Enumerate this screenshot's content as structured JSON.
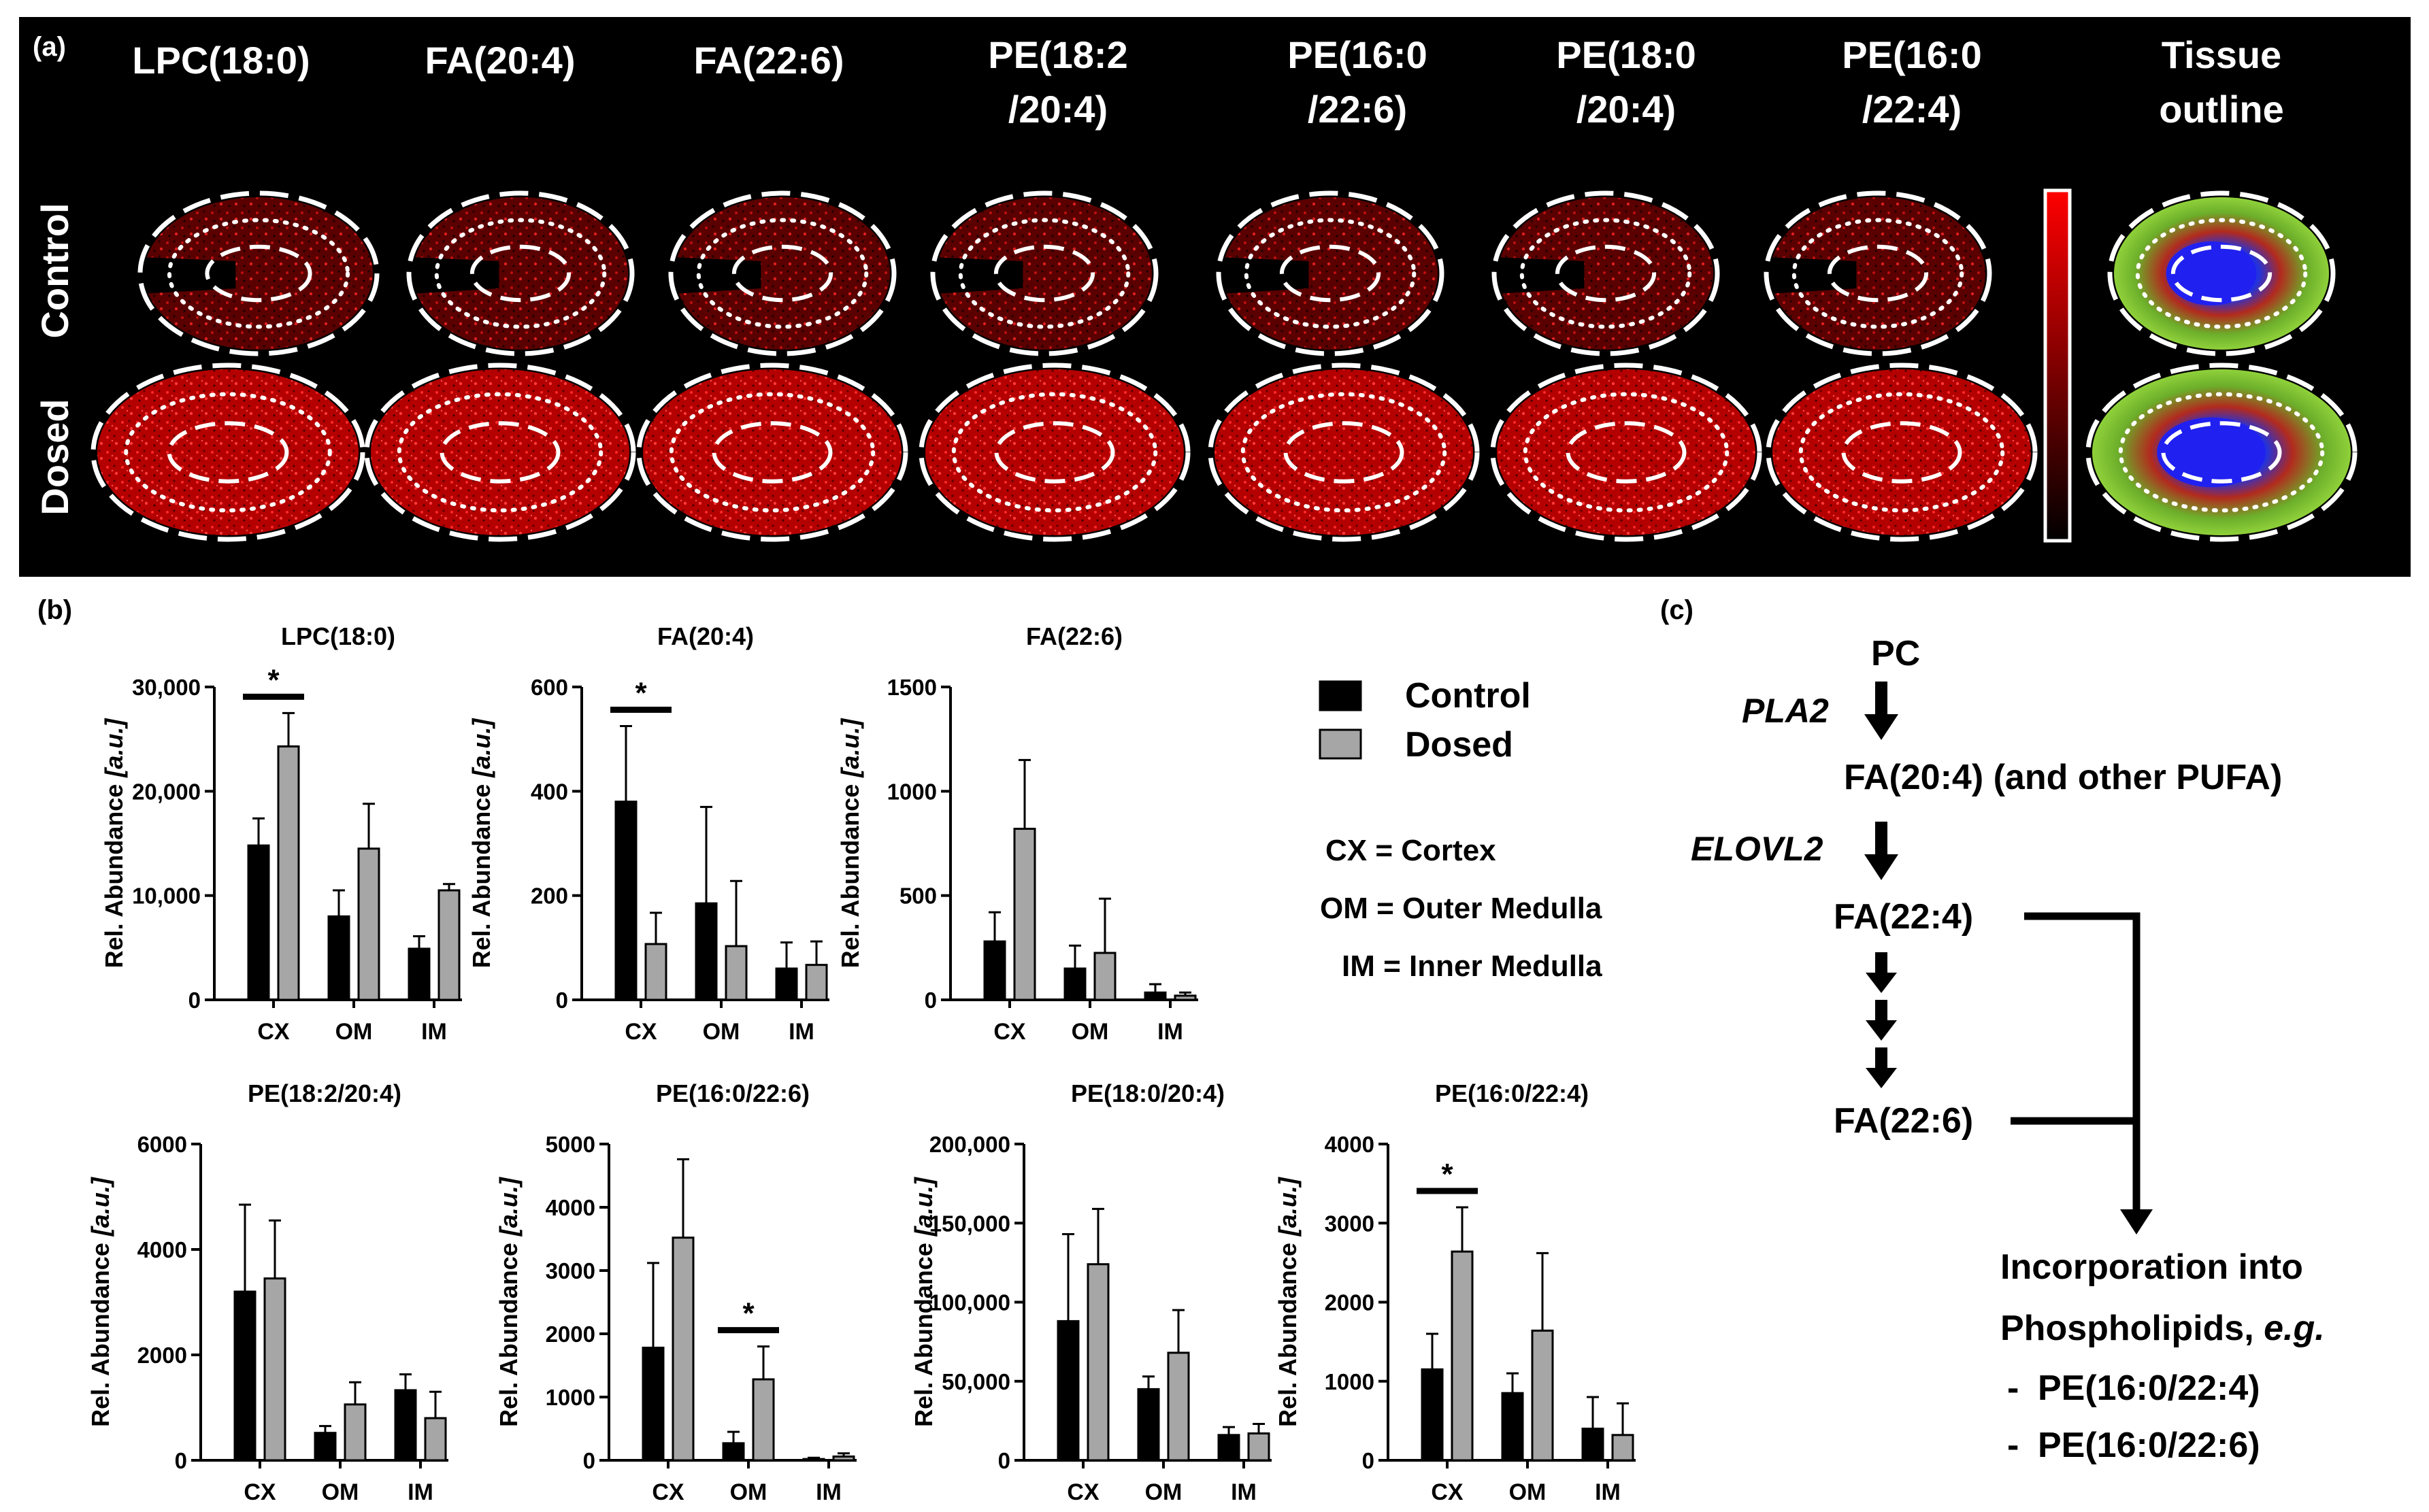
{
  "panel_a": {
    "label": "(a)",
    "columns": [
      {
        "line1": "LPC(18:0)",
        "line2": ""
      },
      {
        "line1": "FA(20:4)",
        "line2": ""
      },
      {
        "line1": "FA(22:6)",
        "line2": ""
      },
      {
        "line1": "PE(18:2",
        "line2": "/20:4)"
      },
      {
        "line1": "PE(16:0",
        "line2": "/22:6)"
      },
      {
        "line1": "PE(18:0",
        "line2": "/20:4)"
      },
      {
        "line1": "PE(16:0",
        "line2": "/22:4)"
      },
      {
        "line1": "Tissue",
        "line2": "outline"
      }
    ],
    "rows": [
      "Control",
      "Dosed"
    ]
  },
  "panel_b": {
    "label": "(b)",
    "legend": [
      {
        "name": "Control",
        "color": "#000000"
      },
      {
        "name": "Dosed",
        "color": "#a6a6a6"
      }
    ],
    "abbreviations": [
      "CX = Cortex",
      "OM = Outer Medulla",
      "IM = Inner Medulla"
    ],
    "ylabel_prefix": "Rel. Abundance ",
    "ylabel_unit": "[a.u.]"
  },
  "chart_data": [
    {
      "type": "bar",
      "title": "LPC(18:0)",
      "categories": [
        "CX",
        "OM",
        "IM"
      ],
      "ylim": [
        0,
        30000
      ],
      "yticks": [
        "0",
        "10,000",
        "20,000",
        "30,000"
      ],
      "ytick_values": [
        0,
        10000,
        20000,
        30000
      ],
      "series": [
        {
          "name": "Control",
          "values": [
            14800,
            8000,
            4900
          ],
          "errors": [
            2600,
            2500,
            1200
          ]
        },
        {
          "name": "Dosed",
          "values": [
            24300,
            14500,
            10500
          ],
          "errors": [
            3200,
            4300,
            600
          ]
        }
      ],
      "significance": [
        {
          "category": "CX",
          "label": "*"
        }
      ]
    },
    {
      "type": "bar",
      "title": "FA(20:4)",
      "categories": [
        "CX",
        "OM",
        "IM"
      ],
      "ylim": [
        0,
        600
      ],
      "yticks": [
        "0",
        "200",
        "400",
        "600"
      ],
      "ytick_values": [
        0,
        200,
        400,
        600
      ],
      "series": [
        {
          "name": "Control",
          "values": [
            380,
            185,
            60
          ],
          "errors": [
            145,
            185,
            50
          ]
        },
        {
          "name": "Dosed",
          "values": [
            107,
            103,
            67
          ],
          "errors": [
            60,
            125,
            45
          ]
        }
      ],
      "significance": [
        {
          "category": "CX",
          "label": "*"
        }
      ]
    },
    {
      "type": "bar",
      "title": "FA(22:6)",
      "categories": [
        "CX",
        "OM",
        "IM"
      ],
      "ylim": [
        0,
        1500
      ],
      "yticks": [
        "0",
        "500",
        "1000",
        "1500"
      ],
      "ytick_values": [
        0,
        500,
        1000,
        1500
      ],
      "series": [
        {
          "name": "Control",
          "values": [
            280,
            150,
            35
          ],
          "errors": [
            140,
            110,
            40
          ]
        },
        {
          "name": "Dosed",
          "values": [
            820,
            225,
            20
          ],
          "errors": [
            330,
            260,
            15
          ]
        }
      ],
      "significance": []
    },
    {
      "type": "bar",
      "title": "PE(18:2/20:4)",
      "categories": [
        "CX",
        "OM",
        "IM"
      ],
      "ylim": [
        0,
        6000
      ],
      "yticks": [
        "0",
        "2000",
        "4000",
        "6000"
      ],
      "ytick_values": [
        0,
        2000,
        4000,
        6000
      ],
      "series": [
        {
          "name": "Control",
          "values": [
            3200,
            520,
            1330
          ],
          "errors": [
            1650,
            130,
            300
          ]
        },
        {
          "name": "Dosed",
          "values": [
            3450,
            1060,
            800
          ],
          "errors": [
            1100,
            420,
            500
          ]
        }
      ],
      "significance": []
    },
    {
      "type": "bar",
      "title": "PE(16:0/22:6)",
      "categories": [
        "CX",
        "OM",
        "IM"
      ],
      "ylim": [
        0,
        5000
      ],
      "yticks": [
        "0",
        "1000",
        "2000",
        "3000",
        "4000",
        "5000"
      ],
      "ytick_values": [
        0,
        1000,
        2000,
        3000,
        4000,
        5000
      ],
      "series": [
        {
          "name": "Control",
          "values": [
            1780,
            270,
            20
          ],
          "errors": [
            1340,
            180,
            20
          ]
        },
        {
          "name": "Dosed",
          "values": [
            3520,
            1280,
            60
          ],
          "errors": [
            1240,
            520,
            50
          ]
        }
      ],
      "significance": [
        {
          "category": "OM",
          "label": "*"
        }
      ]
    },
    {
      "type": "bar",
      "title": "PE(18:0/20:4)",
      "categories": [
        "CX",
        "OM",
        "IM"
      ],
      "ylim": [
        0,
        200000
      ],
      "yticks": [
        "0",
        "50,000",
        "100,000",
        "150,000",
        "200,000"
      ],
      "ytick_values": [
        0,
        50000,
        100000,
        150000,
        200000
      ],
      "series": [
        {
          "name": "Control",
          "values": [
            88000,
            45000,
            16000
          ],
          "errors": [
            55000,
            8000,
            5000
          ]
        },
        {
          "name": "Dosed",
          "values": [
            124000,
            68000,
            17000
          ],
          "errors": [
            35000,
            27000,
            6000
          ]
        }
      ],
      "significance": []
    },
    {
      "type": "bar",
      "title": "PE(16:0/22:4)",
      "categories": [
        "CX",
        "OM",
        "IM"
      ],
      "ylim": [
        0,
        4000
      ],
      "yticks": [
        "0",
        "1000",
        "2000",
        "3000",
        "4000"
      ],
      "ytick_values": [
        0,
        1000,
        2000,
        3000,
        4000
      ],
      "series": [
        {
          "name": "Control",
          "values": [
            1150,
            850,
            400
          ],
          "errors": [
            450,
            250,
            400
          ]
        },
        {
          "name": "Dosed",
          "values": [
            2640,
            1640,
            320
          ],
          "errors": [
            560,
            980,
            400
          ]
        }
      ],
      "significance": [
        {
          "category": "CX",
          "label": "*"
        }
      ]
    }
  ],
  "panel_c": {
    "label": "(c)",
    "nodes": [
      "PC",
      "FA(20:4) (and other PUFA)",
      "FA(22:4)",
      "FA(22:6)"
    ],
    "enzymes": [
      "PLA2",
      "ELOVL2"
    ],
    "incorporation_line1": "Incorporation into",
    "incorporation_line2_prefix": "Phospholipids, ",
    "incorporation_line2_emph": "e.g.",
    "examples": [
      "PE(16:0/22:4)",
      "PE(16:0/22:6)"
    ],
    "bullet": "-"
  }
}
